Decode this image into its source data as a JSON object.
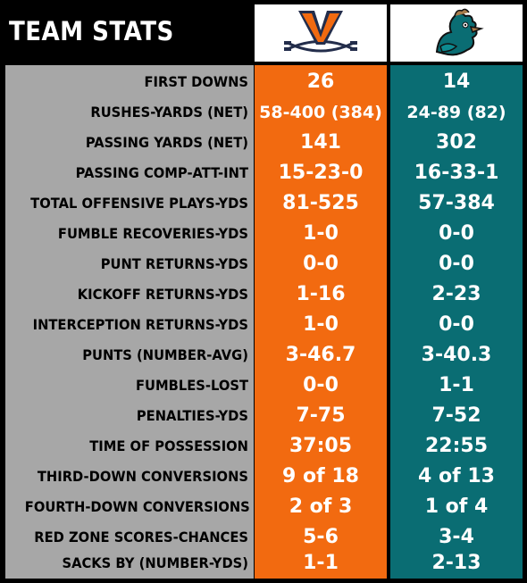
{
  "header": {
    "title": "TEAM STATS"
  },
  "teams": {
    "uva_logo_icon": "virginia-v-sabres-logo-icon",
    "ccu_logo_icon": "coastal-carolina-chanticleer-logo-icon"
  },
  "colors": {
    "uva_orange": "#f26a10",
    "uva_navy": "#232d4b",
    "ccu_teal": "#0a6d73",
    "label_gray": "#a7a7a7"
  },
  "rows": [
    {
      "label": "FIRST DOWNS",
      "uva": "26",
      "ccu": "14"
    },
    {
      "label": "RUSHES-YARDS (NET)",
      "uva": "58-400 (384)",
      "ccu": "24-89 (82)"
    },
    {
      "label": "PASSING YARDS (NET)",
      "uva": "141",
      "ccu": "302"
    },
    {
      "label": "PASSING COMP-ATT-INT",
      "uva": "15-23-0",
      "ccu": "16-33-1"
    },
    {
      "label": "TOTAL OFFENSIVE PLAYS-YDS",
      "uva": "81-525",
      "ccu": "57-384"
    },
    {
      "label": "FUMBLE RECOVERIES-YDS",
      "uva": "1-0",
      "ccu": "0-0"
    },
    {
      "label": "PUNT RETURNS-YDS",
      "uva": "0-0",
      "ccu": "0-0"
    },
    {
      "label": "KICKOFF RETURNS-YDS",
      "uva": "1-16",
      "ccu": "2-23"
    },
    {
      "label": "INTERCEPTION RETURNS-YDS",
      "uva": "1-0",
      "ccu": "0-0"
    },
    {
      "label": "PUNTS (NUMBER-AVG)",
      "uva": "3-46.7",
      "ccu": "3-40.3"
    },
    {
      "label": "FUMBLES-LOST",
      "uva": "0-0",
      "ccu": "1-1"
    },
    {
      "label": "PENALTIES-YDS",
      "uva": "7-75",
      "ccu": "7-52"
    },
    {
      "label": "TIME OF POSSESSION",
      "uva": "37:05",
      "ccu": "22:55"
    },
    {
      "label": "THIRD-DOWN CONVERSIONS",
      "uva": "9 of 18",
      "ccu": "4 of 13"
    },
    {
      "label": "FOURTH-DOWN CONVERSIONS",
      "uva": "2 of 3",
      "ccu": "1 of 4"
    },
    {
      "label": "RED ZONE SCORES-CHANCES",
      "uva": "5-6",
      "ccu": "3-4"
    },
    {
      "label": "SACKS BY (NUMBER-YDS)",
      "uva": "1-1",
      "ccu": "2-13"
    }
  ]
}
